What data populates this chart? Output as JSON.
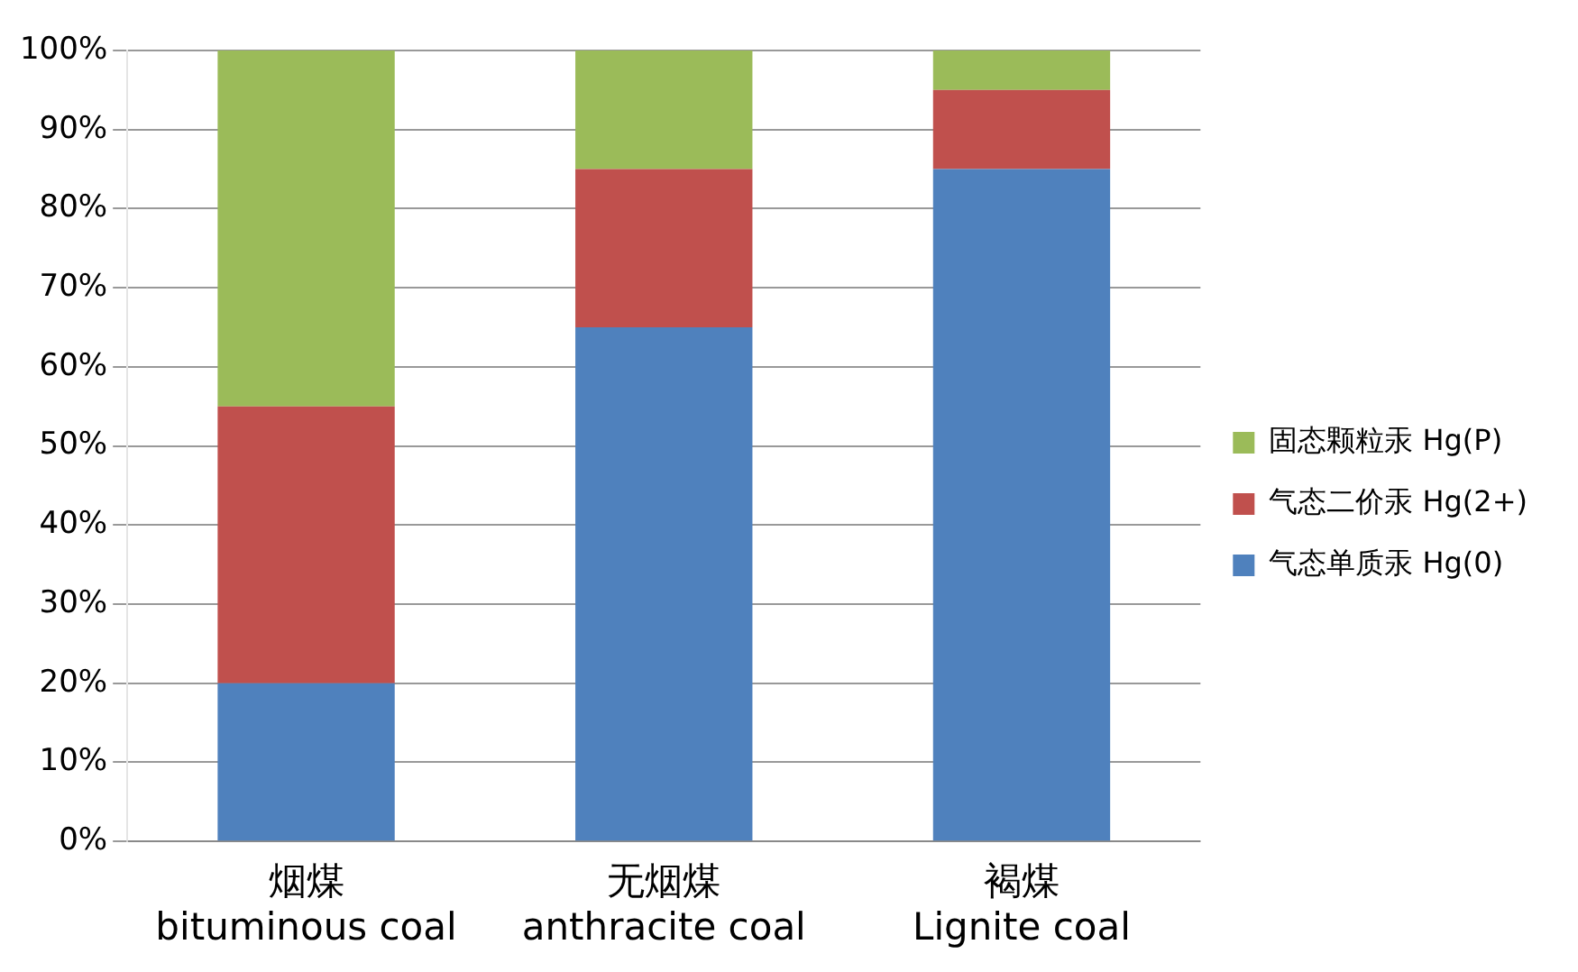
{
  "chart_data": {
    "type": "bar",
    "stacked": true,
    "categories": [
      "烟煤\nbituminous coal",
      "无烟煤\nanthracite coal",
      "褐煤\nLignite coal"
    ],
    "series": [
      {
        "name": "气态单质汞 Hg(0)",
        "color": "#4f81bd",
        "values": [
          20,
          65,
          85
        ]
      },
      {
        "name": "气态二价汞 Hg(2+)",
        "color": "#c0504d",
        "values": [
          35,
          20,
          10
        ]
      },
      {
        "name": "固态颗粒汞 Hg(P)",
        "color": "#9bbb59",
        "values": [
          45,
          15,
          5
        ]
      }
    ],
    "ylim": [
      0,
      100
    ],
    "yticks": [
      {
        "value": 0,
        "label": "0%"
      },
      {
        "value": 10,
        "label": "10%"
      },
      {
        "value": 20,
        "label": "20%"
      },
      {
        "value": 30,
        "label": "30%"
      },
      {
        "value": 40,
        "label": "40%"
      },
      {
        "value": 50,
        "label": "50%"
      },
      {
        "value": 60,
        "label": "60%"
      },
      {
        "value": 70,
        "label": "70%"
      },
      {
        "value": 80,
        "label": "80%"
      },
      {
        "value": 90,
        "label": "90%"
      },
      {
        "value": 100,
        "label": "100%"
      }
    ],
    "grid": "y",
    "legend": "right"
  }
}
